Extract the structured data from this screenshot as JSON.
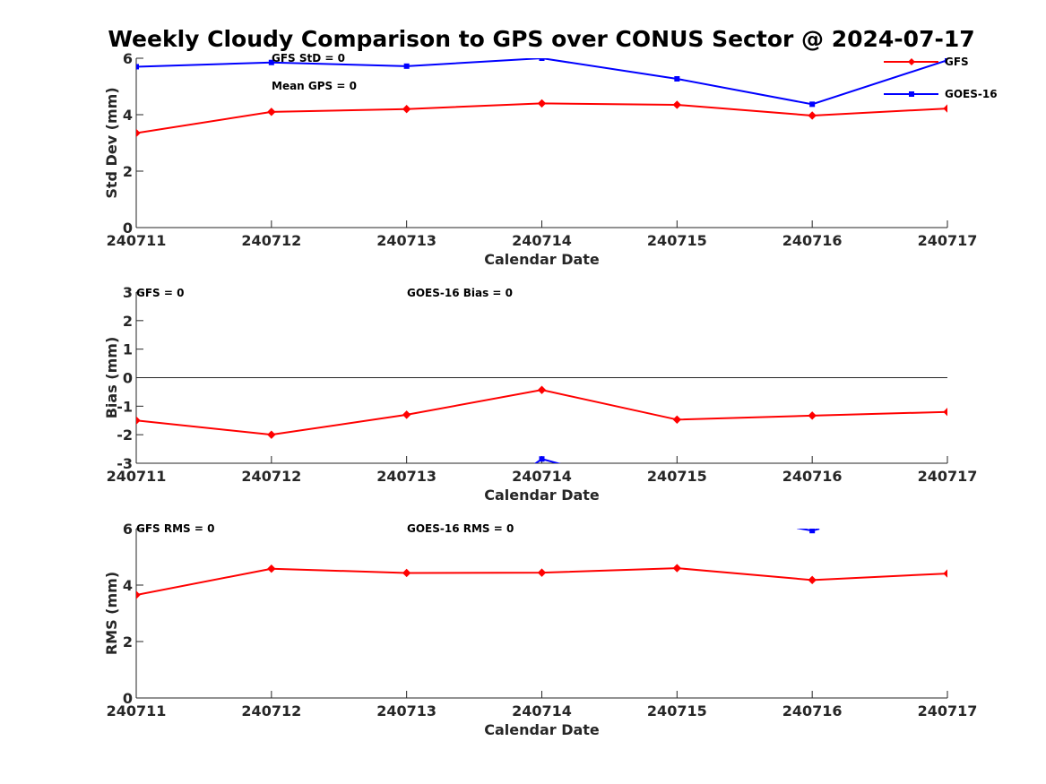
{
  "chart_data": {
    "title": "Weekly Cloudy Comparison to GPS over CONUS Sector @ 2024-07-17",
    "legend": {
      "placement": "top-right",
      "entries": [
        {
          "name": "GFS",
          "color": "#ff0000",
          "marker": "diamond"
        },
        {
          "name": "GOES-16",
          "color": "#0000ff",
          "marker": "square"
        }
      ]
    },
    "panels": [
      {
        "type": "line",
        "ylabel": "Std Dev (mm)",
        "xlabel": "Calendar Date",
        "categories": [
          "240711",
          "240712",
          "240713",
          "240714",
          "240715",
          "240716",
          "240717"
        ],
        "ylim": [
          0,
          6
        ],
        "yticks": [
          "0",
          "2",
          "4",
          "6"
        ],
        "annotations": [
          "GFS StD = 0",
          "Mean GPS = 0"
        ],
        "series": [
          {
            "name": "GFS",
            "color": "#ff0000",
            "marker": "diamond",
            "values": [
              3.35,
              4.1,
              4.2,
              4.4,
              4.35,
              3.97,
              4.22
            ]
          },
          {
            "name": "GOES-16",
            "color": "#0000ff",
            "marker": "square",
            "values": [
              5.7,
              5.85,
              5.72,
              6.0,
              5.27,
              4.37,
              5.93
            ]
          }
        ]
      },
      {
        "type": "line",
        "ylabel": "Bias (mm)",
        "xlabel": "Calendar Date",
        "categories": [
          "240711",
          "240712",
          "240713",
          "240714",
          "240715",
          "240716",
          "240717"
        ],
        "ylim": [
          -3,
          3
        ],
        "yticks": [
          "-3",
          "-2",
          "-1",
          "0",
          "1",
          "2",
          "3"
        ],
        "zero_line": true,
        "annotations": [
          "GFS = 0",
          "GOES-16 Bias  = 0"
        ],
        "series": [
          {
            "name": "GFS",
            "color": "#ff0000",
            "marker": "diamond",
            "values": [
              -1.5,
              -2.0,
              -1.3,
              -0.43,
              -1.47,
              -1.33,
              -1.2
            ]
          },
          {
            "name": "GOES-16",
            "color": "#0000ff",
            "marker": "square",
            "values": [
              null,
              null,
              null,
              -2.85,
              null,
              null,
              null
            ]
          }
        ]
      },
      {
        "type": "line",
        "ylabel": "RMS (mm)",
        "xlabel": "Calendar Date",
        "categories": [
          "240711",
          "240712",
          "240713",
          "240714",
          "240715",
          "240716",
          "240717"
        ],
        "ylim": [
          0,
          6
        ],
        "yticks": [
          "0",
          "2",
          "4",
          "6"
        ],
        "annotations": [
          "GFS RMS = 0",
          "GOES-16 RMS = 0"
        ],
        "series": [
          {
            "name": "GFS",
            "color": "#ff0000",
            "marker": "diamond",
            "values": [
              3.65,
              4.58,
              4.43,
              4.44,
              4.6,
              4.18,
              4.41
            ]
          },
          {
            "name": "GOES-16",
            "color": "#0000ff",
            "marker": "square",
            "values": [
              null,
              null,
              null,
              null,
              null,
              5.93,
              null
            ]
          }
        ]
      }
    ]
  }
}
